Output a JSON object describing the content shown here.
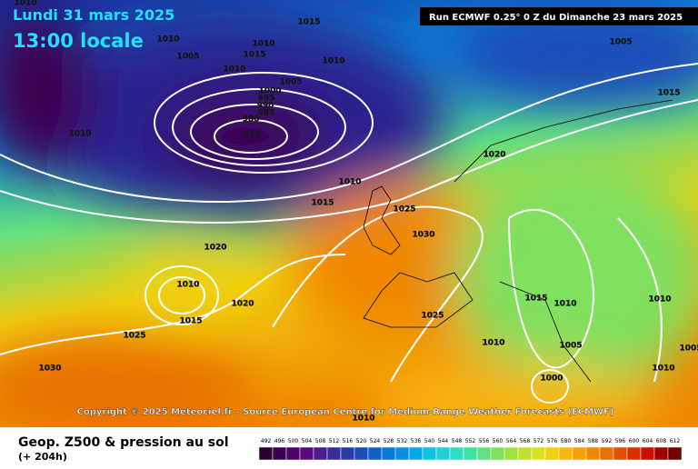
{
  "header": {
    "date": "Lundi 31 mars 2025",
    "time": "13:00 locale",
    "run": "Run ECMWF 0.25° 0 Z du Dimanche 23 mars 2025"
  },
  "copyright": "Copyright © 2025 Meteociel.fr - Source European Centre for Medium-Range Weather Forecasts (ECMWF)",
  "legend": {
    "title": "Geop. Z500 & pression au sol",
    "lead": "(+ 204h)",
    "ticks": [
      492,
      496,
      500,
      504,
      508,
      512,
      516,
      520,
      524,
      528,
      532,
      536,
      540,
      544,
      548,
      552,
      556,
      560,
      564,
      568,
      572,
      576,
      580,
      584,
      588,
      592,
      596,
      600,
      604,
      608,
      612
    ],
    "colors": [
      "#2b0033",
      "#3c0050",
      "#4d006b",
      "#5a0a80",
      "#4b1a8c",
      "#3a2a9a",
      "#2a3aa8",
      "#1c4cb8",
      "#1060c8",
      "#0a78d8",
      "#0890e0",
      "#08a8e8",
      "#10c0e8",
      "#20d0d8",
      "#30dcc0",
      "#40e0a0",
      "#60e080",
      "#80e060",
      "#a0e040",
      "#c0e030",
      "#dde020",
      "#f0d010",
      "#f8b810",
      "#f8a000",
      "#f08800",
      "#e87000",
      "#e05000",
      "#d83000",
      "#c81000",
      "#a00000",
      "#700000"
    ]
  },
  "isobar_labels": [
    1010,
    1015,
    1010,
    1005,
    1010,
    1015,
    1010,
    1010,
    1005,
    1000,
    995,
    990,
    985,
    980,
    975,
    1010,
    1005,
    1015,
    1020,
    1010,
    1015,
    1025,
    1030,
    1020,
    1010,
    1015,
    1020,
    1025,
    1025,
    1015,
    1010,
    1010,
    1010,
    1005,
    1000,
    1030,
    1010,
    1010,
    1005
  ]
}
